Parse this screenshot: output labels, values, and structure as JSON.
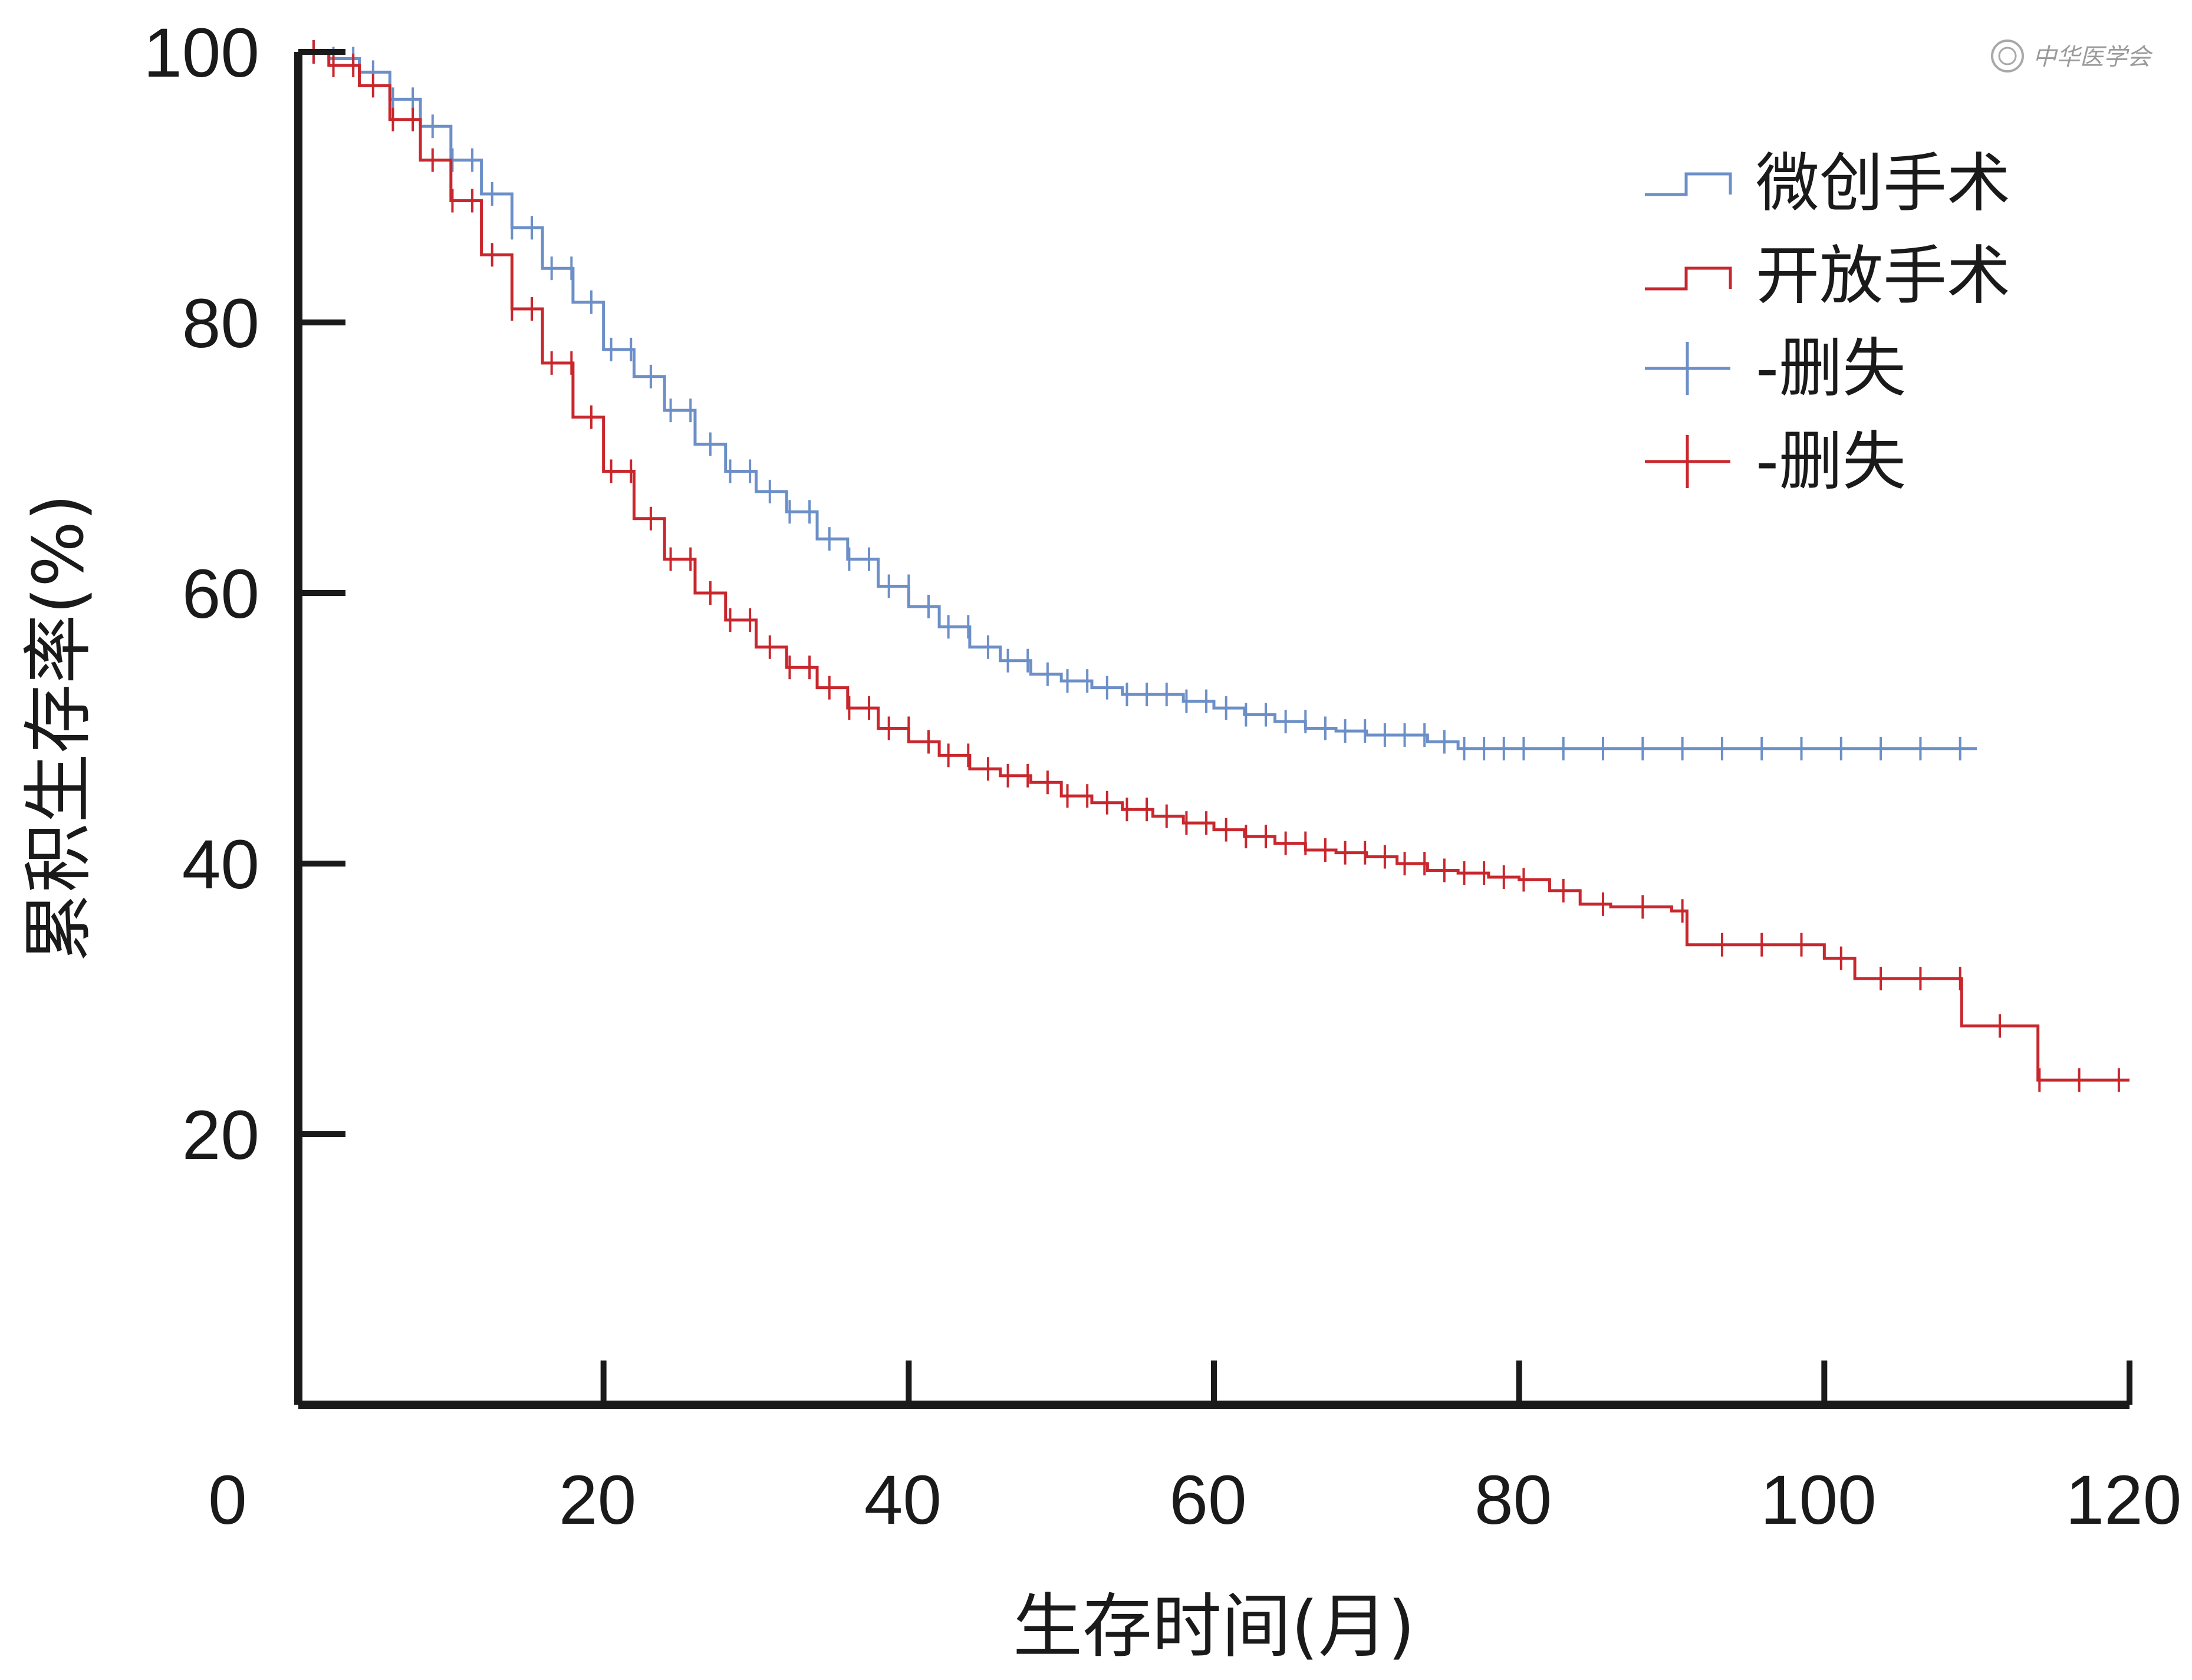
{
  "chart_data": {
    "type": "line",
    "subtype": "kaplan-meier",
    "title": "",
    "xlabel": "生存时间(月)",
    "ylabel": "累积生存率(%)",
    "xlim": [
      0,
      120
    ],
    "ylim": [
      0,
      100
    ],
    "x_ticks": [
      0,
      20,
      40,
      60,
      80,
      100,
      120
    ],
    "y_ticks": [
      20,
      40,
      60,
      80,
      100
    ],
    "grid": false,
    "legend_position": "top-right",
    "legend": [
      {
        "label": "微创手术",
        "kind": "line",
        "color": "#6c8fc7"
      },
      {
        "label": "开放手术",
        "kind": "line",
        "color": "#c8272d"
      },
      {
        "label": "-删失",
        "kind": "censor",
        "color": "#6c8fc7"
      },
      {
        "label": "-删失",
        "kind": "censor",
        "color": "#c8272d"
      }
    ],
    "series": [
      {
        "name": "微创手术",
        "color": "#6c8fc7",
        "x": [
          0,
          2,
          4,
          6,
          8,
          10,
          12,
          14,
          16,
          18,
          20,
          22,
          24,
          26,
          28,
          30,
          32,
          34,
          36,
          38,
          40,
          42,
          44,
          46,
          48,
          50,
          52,
          54,
          56,
          58,
          60,
          62,
          64,
          66,
          68,
          70,
          72,
          74,
          76,
          78,
          80,
          85,
          90,
          95,
          100,
          105,
          110
        ],
        "y": [
          100,
          99.5,
          98.5,
          96.5,
          94.5,
          92,
          89.5,
          87,
          84,
          81.5,
          78,
          76,
          73.5,
          71,
          69,
          67.5,
          66,
          64,
          62.5,
          60.5,
          59,
          57.5,
          56,
          55,
          54,
          53.5,
          53,
          52.5,
          52.5,
          52,
          51.5,
          51,
          50.5,
          50,
          49.8,
          49.5,
          49.5,
          49,
          48.5,
          48.5,
          48.5,
          48.5,
          48.5,
          48.5,
          48.5,
          48.5,
          48.5
        ]
      },
      {
        "name": "开放手术",
        "color": "#c8272d",
        "x": [
          0,
          2,
          4,
          6,
          8,
          10,
          12,
          14,
          16,
          18,
          20,
          22,
          24,
          26,
          28,
          30,
          32,
          34,
          36,
          38,
          40,
          42,
          44,
          46,
          48,
          50,
          52,
          54,
          56,
          58,
          60,
          62,
          64,
          66,
          68,
          70,
          72,
          74,
          76,
          78,
          80,
          82,
          84,
          86,
          88,
          90,
          91,
          95,
          100,
          102,
          105,
          108,
          109,
          114,
          120
        ],
        "y": [
          100,
          99,
          97.5,
          95,
          92,
          89,
          85,
          81,
          77,
          73,
          69,
          65.5,
          62.5,
          60,
          58,
          56,
          54.5,
          53,
          51.5,
          50,
          49,
          48,
          47,
          46.5,
          46,
          45,
          44.5,
          44,
          43.5,
          43,
          42.5,
          42,
          41.5,
          41,
          40.8,
          40.5,
          40,
          39.5,
          39.3,
          39,
          38.8,
          38,
          37,
          36.8,
          36.8,
          36.5,
          34,
          34,
          33,
          31.5,
          31.5,
          31.5,
          28,
          24,
          24
        ]
      }
    ]
  },
  "watermark": {
    "text": "中华医学会",
    "icon": "society-seal-icon"
  }
}
